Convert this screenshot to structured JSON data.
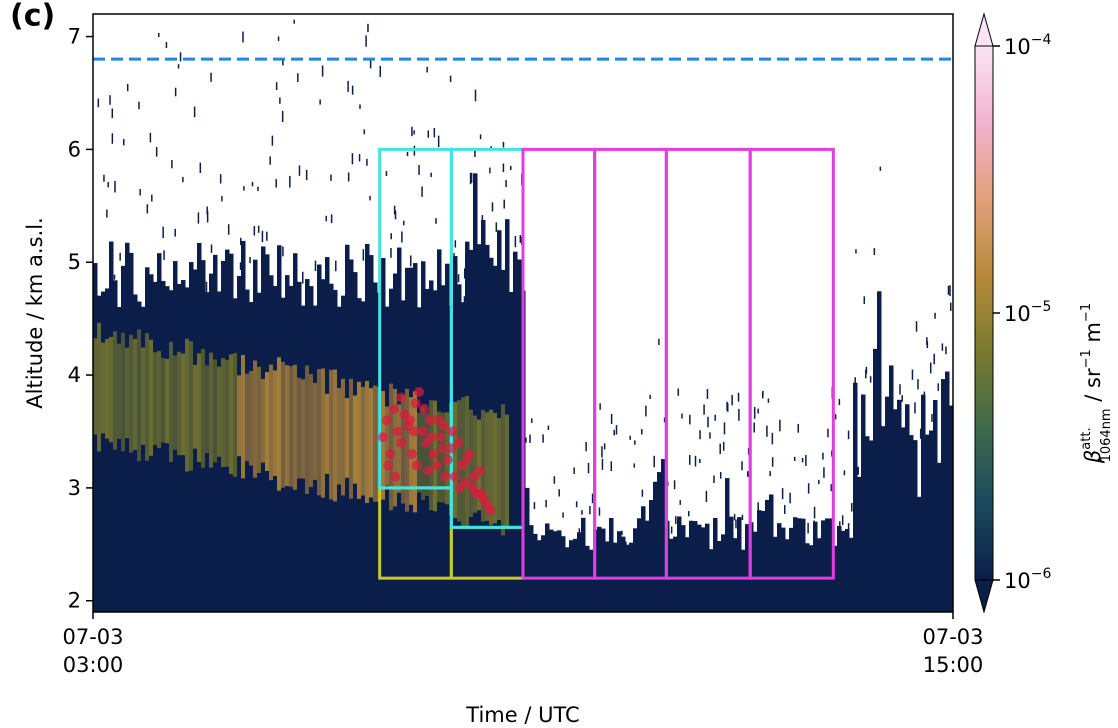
{
  "chart_data": {
    "type": "heatmap",
    "panel_label": "(c)",
    "xlabel": "Time / UTC",
    "ylabel": "Altitude / km a.s.l.",
    "x_ticks": [
      {
        "value": 3,
        "line1": "07-03",
        "line2": "03:00"
      },
      {
        "value": 15,
        "line1": "07-03",
        "line2": "15:00"
      }
    ],
    "y_ticks": [
      2,
      3,
      4,
      5,
      6,
      7
    ],
    "xlim": [
      3,
      15
    ],
    "ylim": [
      1.9,
      7.2
    ],
    "colorbar": {
      "label_symbol": "β",
      "label_sup": "att.",
      "label_sub": "1064nm",
      "label_units": " / sr",
      "label_units_exp1": "−1",
      "label_units_mid": " m",
      "label_units_exp2": "−1",
      "scale": "log",
      "range": [
        1e-06,
        0.0001
      ],
      "ticks": [
        {
          "exp": -6,
          "base": "10",
          "exp_label": "−6"
        },
        {
          "exp": -5,
          "base": "10",
          "exp_label": "−5"
        },
        {
          "exp": -4,
          "base": "10",
          "exp_label": "−4"
        }
      ],
      "colors": [
        "#0b1e4a",
        "#1a4a5e",
        "#3f6a4a",
        "#7a7a2e",
        "#b88a3a",
        "#e2a07a",
        "#f2b3cf",
        "#fbe4f6"
      ]
    },
    "reference_line": {
      "altitude": 6.8,
      "color": "#1e88e5",
      "style": "dashed"
    },
    "boxes": [
      {
        "x0": 7.0,
        "x1": 8.0,
        "y0": 2.2,
        "y1": 3.0,
        "color": "#c8c82a"
      },
      {
        "x0": 8.0,
        "x1": 9.0,
        "y0": 2.2,
        "y1": 2.65,
        "color": "#c8c82a"
      },
      {
        "x0": 7.0,
        "x1": 8.0,
        "y0": 3.0,
        "y1": 6.0,
        "color": "#3fe5e5"
      },
      {
        "x0": 8.0,
        "x1": 9.0,
        "y0": 2.65,
        "y1": 6.0,
        "color": "#3fe5e5"
      },
      {
        "x0": 9.0,
        "x1": 10.0,
        "y0": 2.2,
        "y1": 6.0,
        "color": "#e23de2"
      },
      {
        "x0": 10.0,
        "x1": 11.0,
        "y0": 2.2,
        "y1": 6.0,
        "color": "#e23de2"
      },
      {
        "x0": 11.0,
        "x1": 12.17,
        "y0": 2.2,
        "y1": 6.0,
        "color": "#e23de2"
      },
      {
        "x0": 12.17,
        "x1": 13.33,
        "y0": 2.2,
        "y1": 6.0,
        "color": "#e23de2"
      }
    ],
    "scatter": {
      "color": "#e0193c",
      "points": [
        [
          7.05,
          3.45
        ],
        [
          7.1,
          3.6
        ],
        [
          7.15,
          3.3
        ],
        [
          7.2,
          3.7
        ],
        [
          7.25,
          3.5
        ],
        [
          7.3,
          3.4
        ],
        [
          7.35,
          3.65
        ],
        [
          7.4,
          3.55
        ],
        [
          7.45,
          3.3
        ],
        [
          7.5,
          3.75
        ],
        [
          7.55,
          3.85
        ],
        [
          7.6,
          3.5
        ],
        [
          7.65,
          3.4
        ],
        [
          7.7,
          3.6
        ],
        [
          7.75,
          3.3
        ],
        [
          7.8,
          3.2
        ],
        [
          7.85,
          3.45
        ],
        [
          7.9,
          3.55
        ],
        [
          7.95,
          3.25
        ],
        [
          8.0,
          3.35
        ],
        [
          8.05,
          3.1
        ],
        [
          8.1,
          3.4
        ],
        [
          8.15,
          3.2
        ],
        [
          8.2,
          3.05
        ],
        [
          8.25,
          3.3
        ],
        [
          8.3,
          3.0
        ],
        [
          8.35,
          2.95
        ],
        [
          8.4,
          3.15
        ],
        [
          8.45,
          2.9
        ],
        [
          8.5,
          2.85
        ],
        [
          8.55,
          2.8
        ],
        [
          7.12,
          3.2
        ],
        [
          7.22,
          3.1
        ],
        [
          7.42,
          3.6
        ],
        [
          7.52,
          3.2
        ],
        [
          7.62,
          3.7
        ],
        [
          7.72,
          3.45
        ],
        [
          7.82,
          3.6
        ],
        [
          7.92,
          3.1
        ],
        [
          8.02,
          3.5
        ],
        [
          8.12,
          3.0
        ],
        [
          8.22,
          3.25
        ],
        [
          8.32,
          3.1
        ],
        [
          8.42,
          2.95
        ],
        [
          7.3,
          3.8
        ],
        [
          7.48,
          3.5
        ],
        [
          7.68,
          3.15
        ],
        [
          7.88,
          3.35
        ]
      ]
    }
  }
}
